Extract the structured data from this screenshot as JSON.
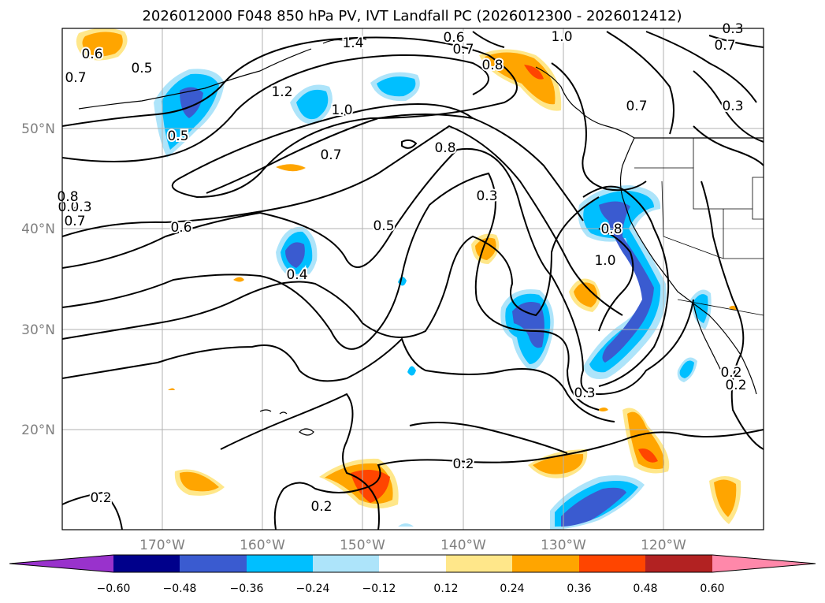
{
  "title": "2026012000 F048 850 hPa PV, IVT Landfall PC (2026012300 - 2026012412)",
  "lat_labels": [
    "50°N",
    "40°N",
    "30°N",
    "20°N"
  ],
  "lon_labels": [
    "170°W",
    "160°W",
    "150°W",
    "140°W",
    "130°W",
    "120°W"
  ],
  "contour_labels": [
    "0.6",
    "1.4",
    "1.0",
    "0.6",
    "0.7",
    "0.8",
    "0.5",
    "0.7",
    "1.2",
    "1.0",
    "0.5",
    "0.7",
    "0.8",
    "0.7",
    "0.3",
    "0.2",
    "0.3",
    "0.6",
    "0.3",
    "0.5",
    "0.8",
    "1.0",
    "0.4",
    "0.3",
    "0.2",
    "0.2",
    "0.2",
    "0.2",
    "0.7",
    "0.3",
    "0.8",
    "0.7",
    "0.2"
  ],
  "colorbar": {
    "ticks": [
      "−0.60",
      "−0.48",
      "−0.36",
      "−0.24",
      "−0.12",
      "0.12",
      "0.24",
      "0.36",
      "0.48",
      "0.60"
    ],
    "colors": [
      "#9932cc",
      "#00008b",
      "#3a5bd0",
      "#00bfff",
      "#ade4fa",
      "#ffffff",
      "#ffe78a",
      "#ffa500",
      "#ff4500",
      "#b22222",
      "#ff88aa"
    ]
  },
  "legend_colors": {
    "neg_strong": "#3a5bd0",
    "neg_mid": "#00bfff",
    "neg_weak": "#ade4fa",
    "pos_weak": "#ffe78a",
    "pos_mid": "#ffa500",
    "pos_strong": "#ff4500"
  }
}
